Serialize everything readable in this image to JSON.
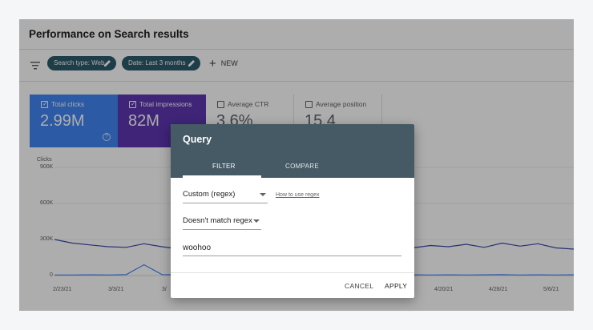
{
  "page": {
    "title": "Performance on Search results"
  },
  "toolbar": {
    "filter_icon": "filter-icon",
    "chips": [
      "Search type: Web",
      "Date: Last 3 months"
    ],
    "new_label": "NEW"
  },
  "metrics": [
    {
      "label": "Total clicks",
      "value": "2.99M",
      "checked": true,
      "color": "#4285f4"
    },
    {
      "label": "Total impressions",
      "value": "82M",
      "checked": true,
      "color": "#5e35b1"
    },
    {
      "label": "Average CTR",
      "value": "3.6%",
      "checked": false
    },
    {
      "label": "Average position",
      "value": "15.4",
      "checked": false
    }
  ],
  "chart_data": {
    "type": "line",
    "ylabel": "Clicks",
    "y_ticks": [
      "900K",
      "600K",
      "300K",
      "0"
    ],
    "ylim": [
      0,
      900000
    ],
    "x_ticks": [
      "2/23/21",
      "3/3/21",
      "3/",
      "4/20/21",
      "4/28/21",
      "5/6/21"
    ],
    "series": [
      {
        "color": "#3949ab",
        "values": [
          300000,
          270000,
          255000,
          240000,
          235000,
          265000,
          240000,
          220000,
          260000,
          380000,
          250000,
          225000,
          240000,
          220000,
          250000,
          245000,
          230000,
          260000,
          240000,
          255000,
          230000,
          250000,
          240000,
          260000,
          235000,
          270000,
          245000,
          265000,
          230000,
          220000
        ]
      },
      {
        "color": "#4285f4",
        "values": [
          5000,
          5000,
          6000,
          5000,
          7000,
          90000,
          8000,
          6000,
          5000,
          6000,
          7000,
          5000,
          6000,
          5000,
          6000,
          5000,
          6000,
          5000,
          7000,
          5000,
          6000,
          5000,
          6000,
          5000,
          6000,
          7000,
          5000,
          6000,
          5000,
          6000
        ]
      }
    ]
  },
  "dialog": {
    "title": "Query",
    "tabs": [
      "FILTER",
      "COMPARE"
    ],
    "type_select": "Custom (regex)",
    "regex_help": "How to use regex",
    "match_select": "Doesn't match regex",
    "value": "woohoo",
    "cancel_label": "CANCEL",
    "apply_label": "APPLY"
  }
}
